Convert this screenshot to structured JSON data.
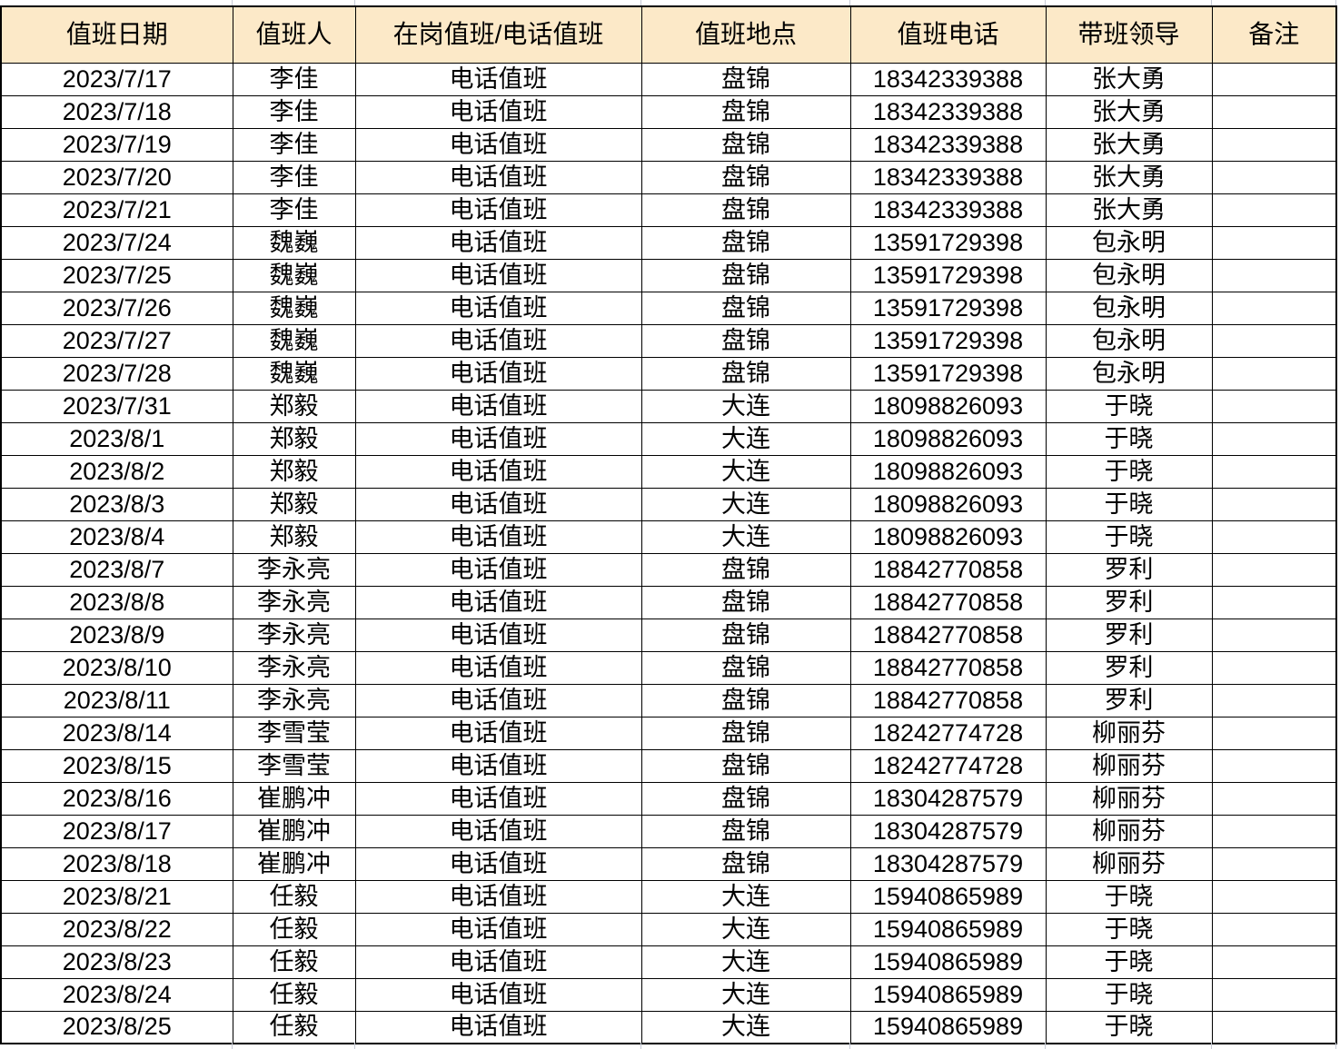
{
  "colors": {
    "header_bg": "#fce9c8",
    "table_border": "#000000",
    "faint_gridline": "#c7cbd6",
    "text": "#000000",
    "page_bg": "#ffffff"
  },
  "table": {
    "columns": [
      "值班日期",
      "值班人",
      "在岗值班/电话值班",
      "值班地点",
      "值班电话",
      "带班领导",
      "备注"
    ],
    "rows": [
      [
        "2023/7/17",
        "李佳",
        "电话值班",
        "盘锦",
        "18342339388",
        "张大勇",
        ""
      ],
      [
        "2023/7/18",
        "李佳",
        "电话值班",
        "盘锦",
        "18342339388",
        "张大勇",
        ""
      ],
      [
        "2023/7/19",
        "李佳",
        "电话值班",
        "盘锦",
        "18342339388",
        "张大勇",
        ""
      ],
      [
        "2023/7/20",
        "李佳",
        "电话值班",
        "盘锦",
        "18342339388",
        "张大勇",
        ""
      ],
      [
        "2023/7/21",
        "李佳",
        "电话值班",
        "盘锦",
        "18342339388",
        "张大勇",
        ""
      ],
      [
        "2023/7/24",
        "魏巍",
        "电话值班",
        "盘锦",
        "13591729398",
        "包永明",
        ""
      ],
      [
        "2023/7/25",
        "魏巍",
        "电话值班",
        "盘锦",
        "13591729398",
        "包永明",
        ""
      ],
      [
        "2023/7/26",
        "魏巍",
        "电话值班",
        "盘锦",
        "13591729398",
        "包永明",
        ""
      ],
      [
        "2023/7/27",
        "魏巍",
        "电话值班",
        "盘锦",
        "13591729398",
        "包永明",
        ""
      ],
      [
        "2023/7/28",
        "魏巍",
        "电话值班",
        "盘锦",
        "13591729398",
        "包永明",
        ""
      ],
      [
        "2023/7/31",
        "郑毅",
        "电话值班",
        "大连",
        "18098826093",
        "于晓",
        ""
      ],
      [
        "2023/8/1",
        "郑毅",
        "电话值班",
        "大连",
        "18098826093",
        "于晓",
        ""
      ],
      [
        "2023/8/2",
        "郑毅",
        "电话值班",
        "大连",
        "18098826093",
        "于晓",
        ""
      ],
      [
        "2023/8/3",
        "郑毅",
        "电话值班",
        "大连",
        "18098826093",
        "于晓",
        ""
      ],
      [
        "2023/8/4",
        "郑毅",
        "电话值班",
        "大连",
        "18098826093",
        "于晓",
        ""
      ],
      [
        "2023/8/7",
        "李永亮",
        "电话值班",
        "盘锦",
        "18842770858",
        "罗利",
        ""
      ],
      [
        "2023/8/8",
        "李永亮",
        "电话值班",
        "盘锦",
        "18842770858",
        "罗利",
        ""
      ],
      [
        "2023/8/9",
        "李永亮",
        "电话值班",
        "盘锦",
        "18842770858",
        "罗利",
        ""
      ],
      [
        "2023/8/10",
        "李永亮",
        "电话值班",
        "盘锦",
        "18842770858",
        "罗利",
        ""
      ],
      [
        "2023/8/11",
        "李永亮",
        "电话值班",
        "盘锦",
        "18842770858",
        "罗利",
        ""
      ],
      [
        "2023/8/14",
        "李雪莹",
        "电话值班",
        "盘锦",
        "18242774728",
        "柳丽芬",
        ""
      ],
      [
        "2023/8/15",
        "李雪莹",
        "电话值班",
        "盘锦",
        "18242774728",
        "柳丽芬",
        ""
      ],
      [
        "2023/8/16",
        "崔鹏冲",
        "电话值班",
        "盘锦",
        "18304287579",
        "柳丽芬",
        ""
      ],
      [
        "2023/8/17",
        "崔鹏冲",
        "电话值班",
        "盘锦",
        "18304287579",
        "柳丽芬",
        ""
      ],
      [
        "2023/8/18",
        "崔鹏冲",
        "电话值班",
        "盘锦",
        "18304287579",
        "柳丽芬",
        ""
      ],
      [
        "2023/8/21",
        "任毅",
        "电话值班",
        "大连",
        "15940865989",
        "于晓",
        ""
      ],
      [
        "2023/8/22",
        "任毅",
        "电话值班",
        "大连",
        "15940865989",
        "于晓",
        ""
      ],
      [
        "2023/8/23",
        "任毅",
        "电话值班",
        "大连",
        "15940865989",
        "于晓",
        ""
      ],
      [
        "2023/8/24",
        "任毅",
        "电话值班",
        "大连",
        "15940865989",
        "于晓",
        ""
      ],
      [
        "2023/8/25",
        "任毅",
        "电话值班",
        "大连",
        "15940865989",
        "于晓",
        ""
      ]
    ]
  }
}
